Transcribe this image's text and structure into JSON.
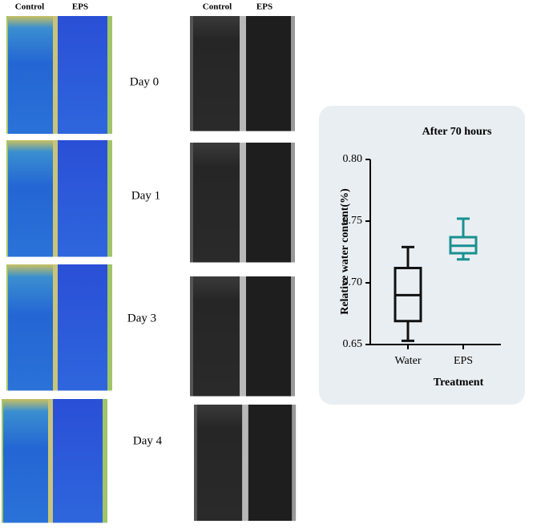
{
  "panels": {
    "color_images": {
      "headers": [
        "Control",
        "EPS"
      ]
    },
    "gray_images": {
      "headers": [
        "Control",
        "EPS"
      ]
    },
    "days": [
      "Day 0",
      "Day 1",
      "Day 3",
      "Day 4"
    ]
  },
  "chart_data": {
    "type": "box",
    "title": "After 70 hours",
    "x_label": "Treatment",
    "y_label": "Relative water content(%)",
    "categories": [
      "Water",
      "EPS"
    ],
    "boxes": [
      {
        "min": 0.653,
        "q1": 0.669,
        "median": 0.69,
        "q3": 0.712,
        "max": 0.729,
        "color": "#111111"
      },
      {
        "min": 0.719,
        "q1": 0.724,
        "median": 0.73,
        "q3": 0.737,
        "max": 0.752,
        "color": "#1a9090"
      }
    ],
    "ylim": [
      0.65,
      0.8
    ],
    "yticks": [
      0.65,
      {
        "value": 0.7,
        "label": "0.70"
      },
      0.75,
      {
        "value": 0.8,
        "label": "0.80"
      }
    ]
  }
}
